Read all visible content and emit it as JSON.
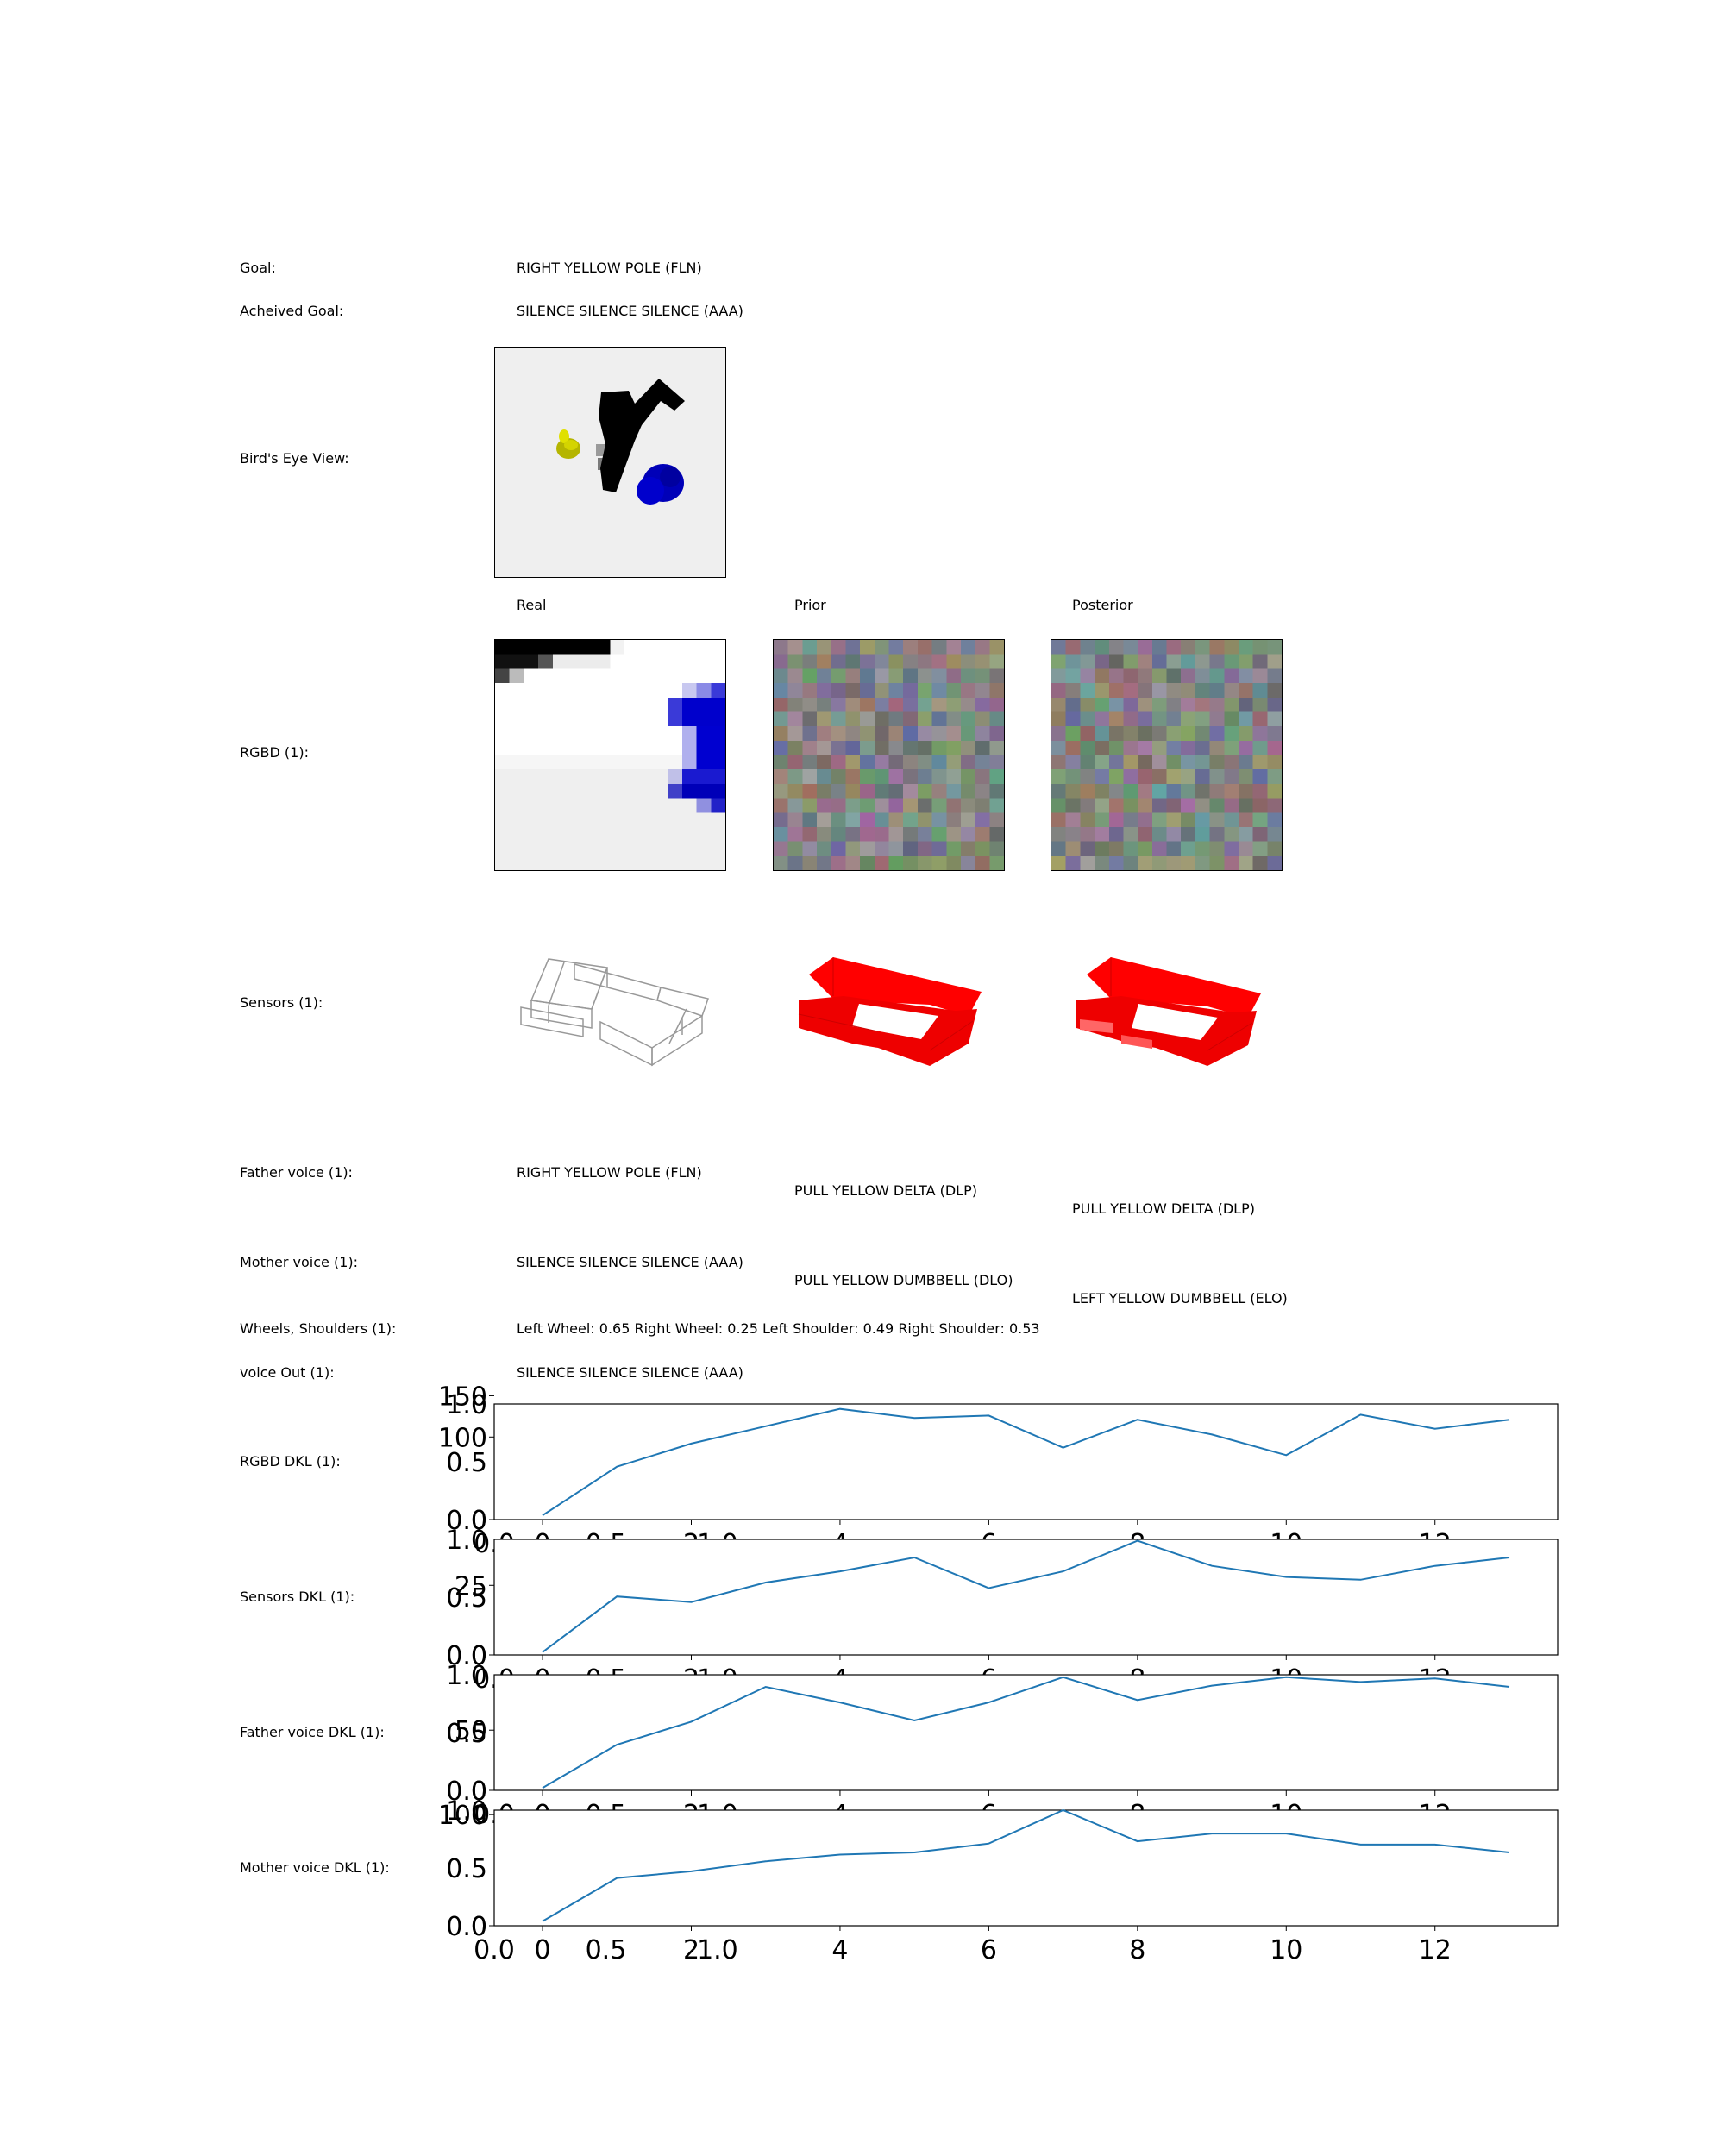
{
  "goal": {
    "label": "Goal:",
    "value": "RIGHT YELLOW POLE (FLN)"
  },
  "achieved": {
    "label": "Acheived Goal:",
    "value": "SILENCE SILENCE SILENCE (AAA)"
  },
  "birds_eye": {
    "label": "Bird's Eye View:"
  },
  "columns": {
    "real": "Real",
    "prior": "Prior",
    "posterior": "Posterior"
  },
  "rgbd": {
    "label": "RGBD (1):"
  },
  "sensors": {
    "label": "Sensors (1):"
  },
  "father": {
    "label": "Father voice (1):",
    "real": "RIGHT YELLOW POLE (FLN)",
    "prior": "PULL YELLOW DELTA (DLP)",
    "posterior": "PULL YELLOW DELTA (DLP)"
  },
  "mother": {
    "label": "Mother voice (1):",
    "real": "SILENCE SILENCE SILENCE (AAA)",
    "prior": "PULL YELLOW DUMBBELL (DLO)",
    "posterior": "LEFT YELLOW DUMBBELL (ELO)"
  },
  "wheels": {
    "label": "Wheels, Shoulders (1):",
    "value": "Left Wheel: 0.65 Right Wheel: 0.25 Left Shoulder: 0.49 Right Shoulder: 0.53"
  },
  "voice_out": {
    "label": "voice Out (1):",
    "value": "SILENCE SILENCE SILENCE (AAA)"
  },
  "colors": {
    "line": "#1f77b4",
    "sensor_red": "#ff0000",
    "blue": "#0000cc",
    "yellow": "#cccc00"
  },
  "chart_data": [
    {
      "type": "line",
      "label": "RGBD DKL (1):",
      "x": [
        0,
        1,
        2,
        3,
        4,
        5,
        6,
        7,
        8,
        9,
        10,
        11,
        12,
        13
      ],
      "values": [
        5,
        64,
        92,
        113,
        134,
        123,
        126,
        87,
        121,
        103,
        78,
        127,
        110,
        121
      ],
      "xlim": [
        -0.65,
        13.65
      ],
      "ylim": [
        0,
        140
      ],
      "xticks": [
        "0",
        "2",
        "4",
        "6",
        "8",
        "10",
        "12"
      ],
      "yticks": [
        "0",
        "100",
        "150"
      ],
      "overlay_xticks": [
        "0.0",
        "0.5",
        "1.0"
      ],
      "overlay_yticks": [
        "0.0",
        "0.5",
        "1.0"
      ]
    },
    {
      "type": "line",
      "label": "Sensors DKL (1):",
      "x": [
        0,
        1,
        2,
        3,
        4,
        5,
        6,
        7,
        8,
        9,
        10,
        11,
        12,
        13
      ],
      "values": [
        1,
        21,
        19,
        26,
        30,
        35,
        24,
        30,
        41,
        32,
        28,
        27,
        32,
        35
      ],
      "xlim": [
        -0.65,
        13.65
      ],
      "ylim": [
        0,
        41.5
      ],
      "xticks": [
        "0",
        "2",
        "4",
        "6",
        "8",
        "10",
        "12"
      ],
      "yticks": [
        "0",
        "25"
      ],
      "overlay_xticks": [
        "0.0",
        "0.5",
        "1.0"
      ],
      "overlay_yticks": [
        "0.0",
        "0.5",
        "1.0"
      ]
    },
    {
      "type": "line",
      "label": "Father voice DKL (1):",
      "x": [
        0,
        1,
        2,
        3,
        4,
        5,
        6,
        7,
        8,
        9,
        10,
        11,
        12,
        13
      ],
      "values": [
        2,
        38,
        57,
        86,
        73,
        58,
        73,
        94,
        75,
        87,
        94,
        90,
        93,
        86
      ],
      "xlim": [
        -0.65,
        13.65
      ],
      "ylim": [
        0,
        96
      ],
      "xticks": [
        "0",
        "2",
        "4",
        "6",
        "8",
        "10",
        "12"
      ],
      "yticks": [
        "0",
        "50"
      ],
      "overlay_xticks": [
        "0.0",
        "0.5",
        "1.0"
      ],
      "overlay_yticks": [
        "0.0",
        "0.5",
        "1.0"
      ]
    },
    {
      "type": "line",
      "label": "Mother voice DKL (1):",
      "x": [
        0,
        1,
        2,
        3,
        4,
        5,
        6,
        7,
        8,
        9,
        10,
        11,
        12,
        13
      ],
      "values": [
        4,
        43,
        49,
        58,
        64,
        66,
        74,
        104,
        76,
        83,
        83,
        73,
        73,
        66
      ],
      "xlim": [
        -0.65,
        13.65
      ],
      "ylim": [
        0,
        104
      ],
      "xticks": [
        "0",
        "2",
        "4",
        "6",
        "8",
        "10",
        "12"
      ],
      "yticks": [
        "0",
        "100"
      ],
      "overlay_xticks": [
        "0.0",
        "0.5",
        "1.0"
      ],
      "overlay_yticks": [
        "0.0",
        "0.5",
        "1.0"
      ]
    }
  ]
}
